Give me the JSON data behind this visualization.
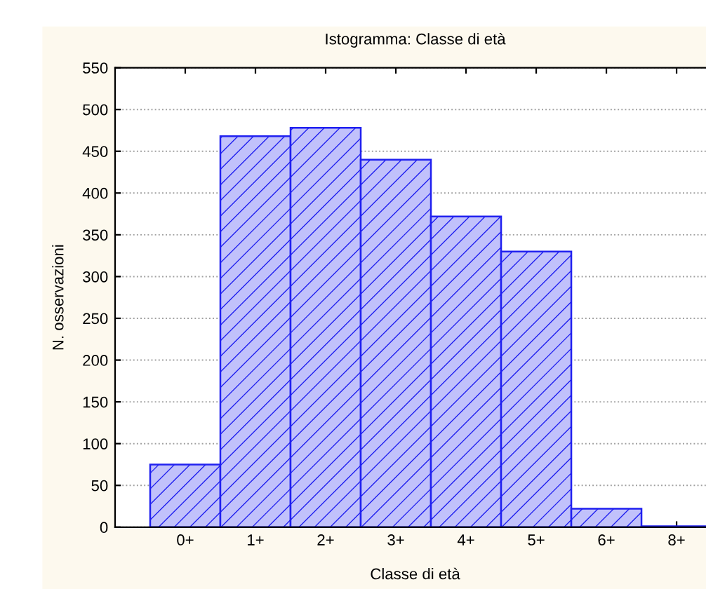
{
  "chart_data": {
    "type": "bar",
    "title": "Istogramma: Classe di età",
    "xlabel": "Classe di età",
    "ylabel": "N. osservazioni",
    "categories": [
      "0+",
      "1+",
      "2+",
      "3+",
      "4+",
      "5+",
      "6+",
      "8+"
    ],
    "values": [
      75,
      468,
      478,
      440,
      372,
      330,
      22,
      1
    ],
    "color": "#2020f0",
    "ylim": [
      0,
      550
    ],
    "yticks": [
      0,
      50,
      100,
      150,
      200,
      250,
      300,
      350,
      400,
      450,
      500,
      550
    ],
    "grid": "y"
  }
}
